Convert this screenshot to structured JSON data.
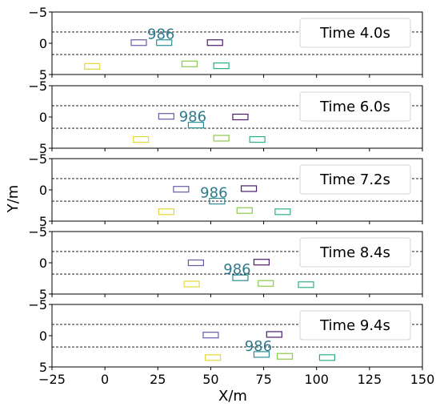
{
  "chart_data": {
    "type": "scatter",
    "xlabel": "X/m",
    "ylabel": "Y/m",
    "xlim": [
      -25,
      150
    ],
    "ylim": [
      5,
      -5
    ],
    "x_ticks": [
      "−25",
      "0",
      "25",
      "50",
      "75",
      "100",
      "125",
      "150"
    ],
    "y_ticks": [
      "−5",
      "0",
      "5"
    ],
    "lane_lines_y": [
      -1.8,
      1.8
    ],
    "grid": false,
    "legend_placement": "top-right",
    "ego_label": "986",
    "colors": {
      "lane_line": "#000000",
      "ego_label": "#2e7a8c",
      "legend_border": "#d3d3d3"
    },
    "panels": [
      {
        "time_label": "Time 4.0s",
        "vehicles": [
          {
            "x": 16,
            "y": -0.1,
            "color": "#6a5aa8"
          },
          {
            "x": 28,
            "y": -0.1,
            "color": "#2a8f95",
            "ego": true
          },
          {
            "x": 52,
            "y": -0.1,
            "color": "#4b1b6e"
          },
          {
            "x": -6,
            "y": 3.7,
            "color": "#e3d93a"
          },
          {
            "x": 40,
            "y": 3.3,
            "color": "#8ac94b"
          },
          {
            "x": 55,
            "y": 3.6,
            "color": "#2bb08a"
          }
        ]
      },
      {
        "time_label": "Time 6.0s",
        "vehicles": [
          {
            "x": 29,
            "y": -0.1,
            "color": "#6a5aa8"
          },
          {
            "x": 43,
            "y": 1.3,
            "color": "#2a8f95",
            "ego": true
          },
          {
            "x": 64,
            "y": 0.0,
            "color": "#4b1b6e"
          },
          {
            "x": 17,
            "y": 3.6,
            "color": "#e3d93a"
          },
          {
            "x": 55,
            "y": 3.4,
            "color": "#8ac94b"
          },
          {
            "x": 72,
            "y": 3.6,
            "color": "#2bb08a"
          }
        ]
      },
      {
        "time_label": "Time 7.2s",
        "vehicles": [
          {
            "x": 36,
            "y": -0.1,
            "color": "#6a5aa8"
          },
          {
            "x": 53,
            "y": 1.8,
            "color": "#2a8f95",
            "ego": true
          },
          {
            "x": 68,
            "y": -0.2,
            "color": "#4b1b6e"
          },
          {
            "x": 29,
            "y": 3.5,
            "color": "#e3d93a"
          },
          {
            "x": 66,
            "y": 3.3,
            "color": "#8ac94b"
          },
          {
            "x": 84,
            "y": 3.5,
            "color": "#2bb08a"
          }
        ]
      },
      {
        "time_label": "Time 8.4s",
        "vehicles": [
          {
            "x": 43,
            "y": 0.0,
            "color": "#6a5aa8"
          },
          {
            "x": 64,
            "y": 2.4,
            "color": "#2a8f95",
            "ego": true
          },
          {
            "x": 74,
            "y": -0.1,
            "color": "#4b1b6e"
          },
          {
            "x": 41,
            "y": 3.4,
            "color": "#e3d93a"
          },
          {
            "x": 76,
            "y": 3.3,
            "color": "#8ac94b"
          },
          {
            "x": 95,
            "y": 3.5,
            "color": "#2bb08a"
          }
        ]
      },
      {
        "time_label": "Time 9.4s",
        "vehicles": [
          {
            "x": 50,
            "y": -0.1,
            "color": "#6a5aa8"
          },
          {
            "x": 74,
            "y": 3.0,
            "color": "#2a8f95",
            "ego": true
          },
          {
            "x": 80,
            "y": -0.2,
            "color": "#4b1b6e"
          },
          {
            "x": 51,
            "y": 3.5,
            "color": "#e3d93a"
          },
          {
            "x": 85,
            "y": 3.3,
            "color": "#8ac94b"
          },
          {
            "x": 105,
            "y": 3.5,
            "color": "#2bb08a"
          }
        ]
      }
    ]
  }
}
